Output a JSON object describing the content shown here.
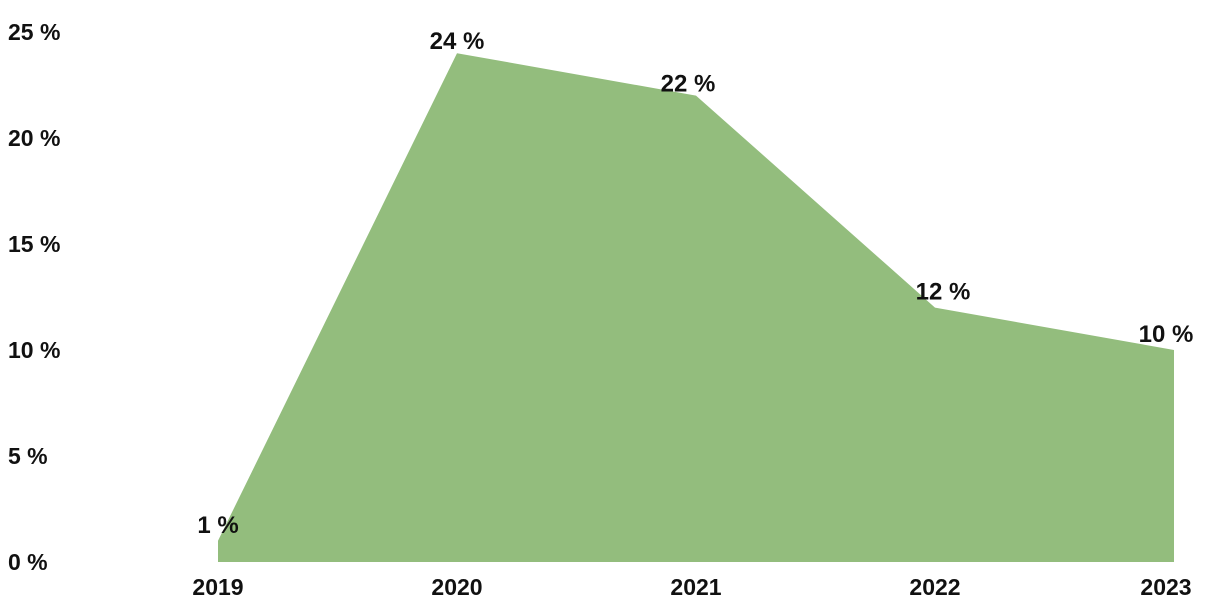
{
  "chart_data": {
    "type": "area",
    "categories": [
      "2019",
      "2020",
      "2021",
      "2022",
      "2023"
    ],
    "series": [
      {
        "values": [
          1,
          24,
          22,
          12,
          10
        ],
        "data_labels": [
          "1 %",
          "24 %",
          "22 %",
          "12 %",
          "10 %"
        ],
        "color": "#93bd7d"
      }
    ],
    "ylim": [
      0,
      25
    ],
    "yticks": [
      0,
      5,
      10,
      15,
      20,
      25
    ],
    "ytick_labels": [
      "0 %",
      "5 %",
      "10 %",
      "15 %",
      "20 %",
      "25 %"
    ],
    "grid": false,
    "legend": "none"
  }
}
